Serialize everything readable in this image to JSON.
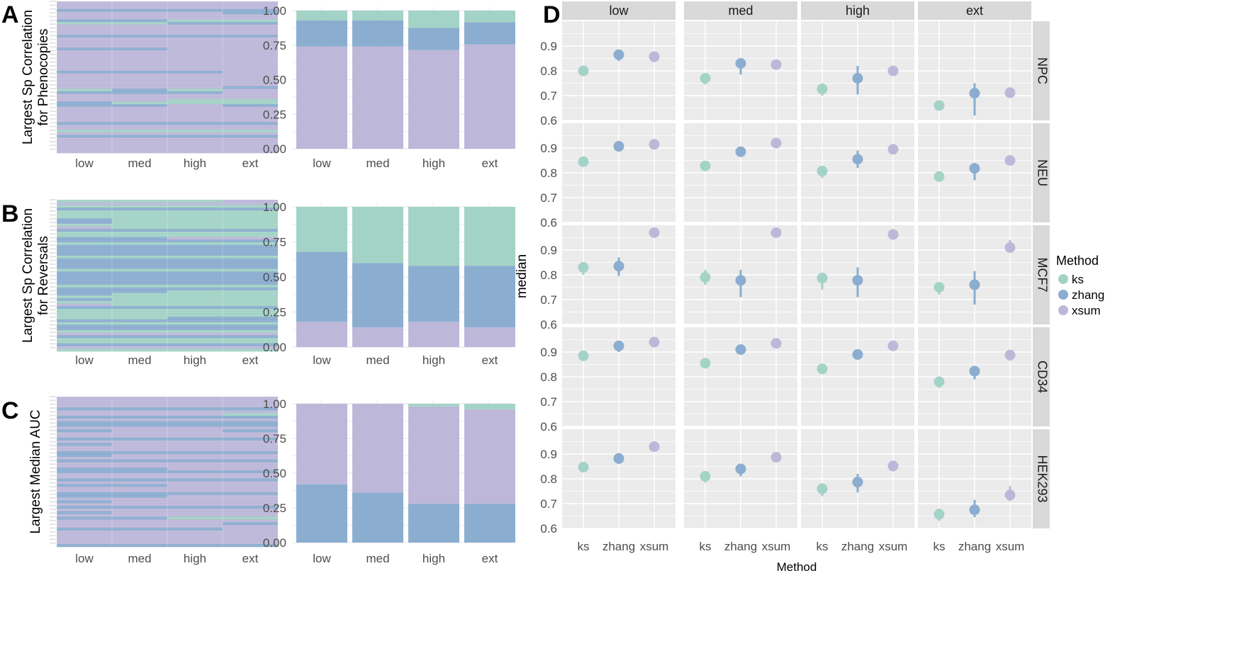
{
  "colors": {
    "ks": "#a3d3c6",
    "zhang": "#8badd0",
    "xsum": "#bdb8d9",
    "panel_bg": "#ebebeb",
    "strip_bg": "#d9d9d9"
  },
  "chart_data": [
    {
      "panel": "A",
      "type": "heatmap",
      "ylabel": [
        "Largest Sp Correlation",
        "for Phenocopies"
      ],
      "categories": [
        "low",
        "med",
        "high",
        "ext"
      ],
      "legend_codes": {
        "k": "ks",
        "z": "zhang",
        "x": "xsum"
      },
      "columns": [
        "xxxzxxxzkxxxxzxxxxzxxxxxxxxzxxxxxxkzxxxzzxxxxxxzxxkxzxxxxxx",
        "xxxzxxxzkxxxxzxxxxzxxxxxxxxzxxxxxxzzxxxkzxxxxxxzxxkxzxxxxxx",
        "xxxzxxxkzxxxxzxxxxxxxxxxxxxzxxxxxxkzxxkkxxxxxxxzxxkxzxxxxxx",
        "xxxzzxxkzxxxxzxxxxxxxxxxxxxxxxxxxzxxxxkkzxxxxxxzxxkxzxxxxxx"
      ]
    },
    {
      "panel": "A",
      "type": "bar",
      "stacked": true,
      "categories": [
        "low",
        "med",
        "high",
        "ext"
      ],
      "ylim": [
        0,
        1
      ],
      "yticks": [
        "0.00",
        "0.25",
        "0.50",
        "0.75",
        "1.00"
      ],
      "series": [
        {
          "name": "xsum",
          "values": [
            0.74,
            0.74,
            0.715,
            0.755
          ]
        },
        {
          "name": "zhang",
          "values": [
            0.19,
            0.19,
            0.16,
            0.16
          ]
        },
        {
          "name": "ks",
          "values": [
            0.07,
            0.07,
            0.125,
            0.085
          ]
        }
      ]
    },
    {
      "panel": "B",
      "type": "heatmap",
      "ylabel": [
        "Largest Sp Correlation",
        "for Reversals"
      ],
      "categories": [
        "low",
        "med",
        "high",
        "ext"
      ],
      "legend_codes": {
        "k": "ks",
        "z": "zhang",
        "x": "xsum"
      },
      "columns": [
        "kxkzkkkzzkxzkkzzkzzzzkzzzzkzzzzzkzzzkzkxzkkkkzkzzkxzkkzxk",
        "kxkzkkkkkkkzkkzzkzzzzkzzzzkzzzzzkzzkkkkkzkkkkzkzzkxzkkzxk",
        "kxkzkkkkkkkzkkxzkzzzzkzzzzkzzzzzkzkkkkkkzkkkzzkzzkxzkkzxk",
        "xxkzkkkkkkkzkkxzkzzzzkzzzzkzzzzzkzkkkkkkzkkkzzkzzkxzkkzxk"
      ]
    },
    {
      "panel": "B",
      "type": "bar",
      "stacked": true,
      "categories": [
        "low",
        "med",
        "high",
        "ext"
      ],
      "ylim": [
        0,
        1
      ],
      "yticks": [
        "0.00",
        "0.25",
        "0.50",
        "0.75",
        "1.00"
      ],
      "series": [
        {
          "name": "xsum",
          "values": [
            0.18,
            0.14,
            0.18,
            0.14
          ]
        },
        {
          "name": "zhang",
          "values": [
            0.5,
            0.46,
            0.4,
            0.44
          ]
        },
        {
          "name": "ks",
          "values": [
            0.32,
            0.4,
            0.42,
            0.42
          ]
        }
      ]
    },
    {
      "panel": "C",
      "type": "heatmap",
      "ylabel": [
        "Largest Median AUC"
      ],
      "categories": [
        "low",
        "med",
        "high",
        "ext"
      ],
      "legend_codes": {
        "k": "ks",
        "z": "zhang",
        "x": "xsum"
      },
      "columns": [
        "xxxxzxxzxzzxzxxzxzxxzzxzxxzzxxzxzxxzzxzxzxzxzxxxzxxxxxz",
        "xxxxzxxzxzzxxxxzxxxxzxxzxxzzxxzxzxxzzxxxzxxxzxxxzxxxxxz",
        "xxxxzxxzxzzxxxxzxxxxzxxzxxxzxxzxxxxzxxxxzxxxkxxxzxxxxxz",
        "xxxxzxkzxzzxzxxzxxxxzxxzxxxzxxzxxxxzxxxxzxxxkxzxxxxxxxz"
      ]
    },
    {
      "panel": "C",
      "type": "bar",
      "stacked": true,
      "categories": [
        "low",
        "med",
        "high",
        "ext"
      ],
      "ylim": [
        0,
        1
      ],
      "yticks": [
        "0.00",
        "0.25",
        "0.50",
        "0.75",
        "1.00"
      ],
      "series": [
        {
          "name": "zhang",
          "values": [
            0.42,
            0.36,
            0.28,
            0.28
          ]
        },
        {
          "name": "xsum",
          "values": [
            0.58,
            0.64,
            0.7,
            0.68
          ]
        },
        {
          "name": "ks",
          "values": [
            0.0,
            0.0,
            0.02,
            0.04
          ]
        }
      ]
    },
    {
      "panel": "D",
      "type": "scatter",
      "subtype": "pointrange",
      "xlabel": "Method",
      "ylabel": "median",
      "ylim": [
        0.6,
        1.0
      ],
      "yticks": [
        "0.6",
        "0.7",
        "0.8",
        "0.9"
      ],
      "facet_cols": [
        "low",
        "med",
        "high",
        "ext"
      ],
      "facet_rows": [
        "NPC",
        "NEU",
        "MCF7",
        "CD34",
        "HEK293"
      ],
      "methods": [
        "ks",
        "zhang",
        "xsum"
      ],
      "legend": {
        "title": "Method",
        "entries": [
          "ks",
          "zhang",
          "xsum"
        ],
        "placement": "right"
      },
      "values_note": "values[row][col][method] = [median, lower, upper]",
      "values": [
        [
          [
            [
              0.8,
              0.79,
              0.81
            ],
            [
              0.865,
              0.84,
              0.875
            ],
            [
              0.857,
              0.835,
              0.865
            ]
          ],
          [
            [
              0.77,
              0.745,
              0.78
            ],
            [
              0.83,
              0.785,
              0.845
            ],
            [
              0.825,
              0.815,
              0.835
            ]
          ],
          [
            [
              0.727,
              0.7,
              0.75
            ],
            [
              0.77,
              0.705,
              0.82
            ],
            [
              0.8,
              0.795,
              0.805
            ]
          ],
          [
            [
              0.66,
              0.64,
              0.68
            ],
            [
              0.71,
              0.62,
              0.75
            ],
            [
              0.712,
              0.69,
              0.73
            ]
          ]
        ],
        [
          [
            [
              0.845,
              0.84,
              0.85
            ],
            [
              0.907,
              0.9,
              0.915
            ],
            [
              0.915,
              0.91,
              0.92
            ]
          ],
          [
            [
              0.828,
              0.82,
              0.835
            ],
            [
              0.885,
              0.865,
              0.895
            ],
            [
              0.92,
              0.915,
              0.925
            ]
          ],
          [
            [
              0.807,
              0.78,
              0.815
            ],
            [
              0.855,
              0.82,
              0.89
            ],
            [
              0.895,
              0.89,
              0.9
            ]
          ],
          [
            [
              0.785,
              0.765,
              0.79
            ],
            [
              0.818,
              0.77,
              0.84
            ],
            [
              0.85,
              0.845,
              0.855
            ]
          ]
        ],
        [
          [
            [
              0.83,
              0.8,
              0.84
            ],
            [
              0.835,
              0.795,
              0.87
            ],
            [
              0.97,
              0.965,
              0.975
            ]
          ],
          [
            [
              0.79,
              0.76,
              0.82
            ],
            [
              0.778,
              0.71,
              0.82
            ],
            [
              0.97,
              0.965,
              0.975
            ]
          ],
          [
            [
              0.787,
              0.74,
              0.8
            ],
            [
              0.778,
              0.71,
              0.83
            ],
            [
              0.963,
              0.958,
              0.968
            ]
          ],
          [
            [
              0.75,
              0.72,
              0.77
            ],
            [
              0.76,
              0.68,
              0.815
            ],
            [
              0.91,
              0.89,
              0.94
            ]
          ]
        ],
        [
          [
            [
              0.885,
              0.875,
              0.895
            ],
            [
              0.925,
              0.9,
              0.935
            ],
            [
              0.94,
              0.935,
              0.945
            ]
          ],
          [
            [
              0.855,
              0.85,
              0.86
            ],
            [
              0.91,
              0.905,
              0.915
            ],
            [
              0.935,
              0.915,
              0.94
            ]
          ],
          [
            [
              0.832,
              0.82,
              0.84
            ],
            [
              0.89,
              0.88,
              0.9
            ],
            [
              0.925,
              0.92,
              0.93
            ]
          ],
          [
            [
              0.78,
              0.755,
              0.79
            ],
            [
              0.823,
              0.79,
              0.835
            ],
            [
              0.888,
              0.865,
              0.895
            ]
          ]
        ],
        [
          [
            [
              0.847,
              0.84,
              0.855
            ],
            [
              0.882,
              0.86,
              0.89
            ],
            [
              0.93,
              0.925,
              0.935
            ]
          ],
          [
            [
              0.81,
              0.785,
              0.82
            ],
            [
              0.84,
              0.81,
              0.85
            ],
            [
              0.887,
              0.88,
              0.895
            ]
          ],
          [
            [
              0.76,
              0.73,
              0.78
            ],
            [
              0.787,
              0.745,
              0.82
            ],
            [
              0.852,
              0.83,
              0.87
            ]
          ],
          [
            [
              0.657,
              0.63,
              0.68
            ],
            [
              0.675,
              0.645,
              0.715
            ],
            [
              0.735,
              0.71,
              0.77
            ]
          ]
        ]
      ]
    }
  ],
  "panel_letters": [
    "A",
    "B",
    "C",
    "D"
  ]
}
